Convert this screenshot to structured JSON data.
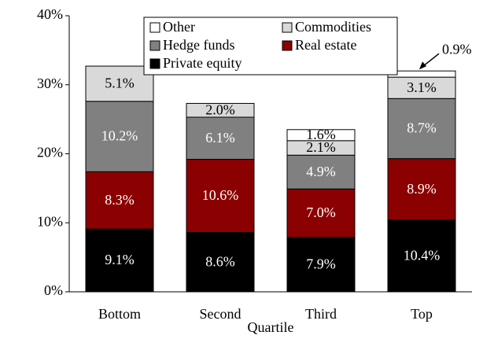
{
  "chart_data": {
    "type": "stacked_bar",
    "categories": [
      "Bottom",
      "Second",
      "Third",
      "Top"
    ],
    "x_label": "Quartile",
    "series": [
      {
        "name": "Private equity",
        "color": "#000000",
        "values": [
          9.1,
          8.6,
          7.9,
          10.4
        ],
        "value_labels": [
          "9.1%",
          "8.6%",
          "7.9%",
          "10.4%"
        ]
      },
      {
        "name": "Real estate",
        "color": "#8b0000",
        "values": [
          8.3,
          10.6,
          7.0,
          8.9
        ],
        "value_labels": [
          "8.3%",
          "10.6%",
          "7.0%",
          "8.9%"
        ]
      },
      {
        "name": "Hedge funds",
        "color": "#808080",
        "values": [
          10.2,
          6.1,
          4.9,
          8.7
        ],
        "value_labels": [
          "10.2%",
          "6.1%",
          "4.9%",
          "8.7%"
        ]
      },
      {
        "name": "Commodities",
        "color": "#d9d9d9",
        "values": [
          5.1,
          2.0,
          2.1,
          3.1
        ],
        "value_labels": [
          "5.1%",
          "2.0%",
          "2.1%",
          "3.1%"
        ]
      },
      {
        "name": "Other",
        "color": "#ffffff",
        "values": [
          0,
          0,
          1.6,
          0.9
        ],
        "value_labels": [
          null,
          null,
          "1.6%",
          "0.9%"
        ]
      }
    ],
    "ylim": [
      0,
      40
    ],
    "yticks": [
      {
        "value": 0,
        "label": "0%"
      },
      {
        "value": 10,
        "label": "10%"
      },
      {
        "value": 20,
        "label": "20%"
      },
      {
        "value": 30,
        "label": "30%"
      },
      {
        "value": 40,
        "label": "40%"
      }
    ],
    "grid": false,
    "legend": "top"
  }
}
